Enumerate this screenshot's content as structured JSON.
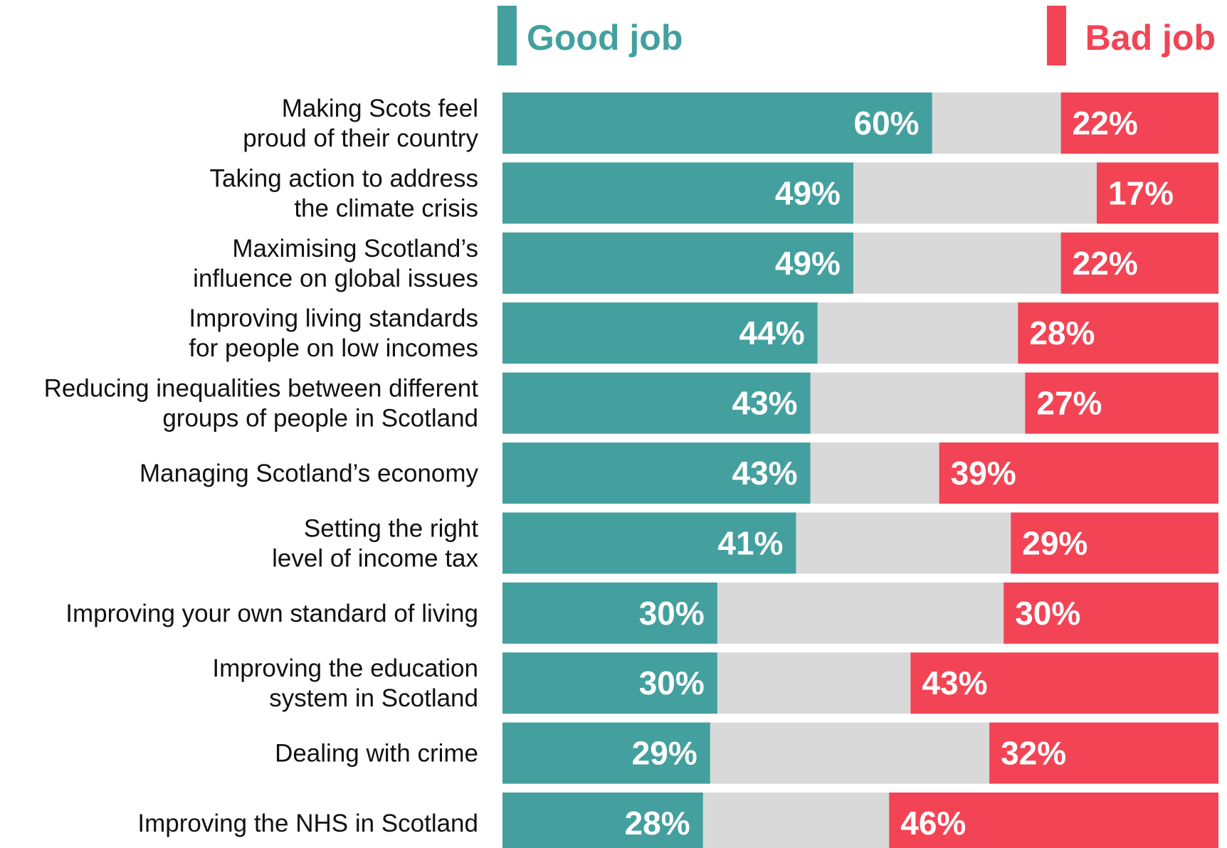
{
  "chart_data": {
    "type": "bar",
    "orientation": "horizontal",
    "stacked": true,
    "xlim": [
      0,
      100
    ],
    "grid": false,
    "legend_placement": "top",
    "categories": [
      [
        "Making Scots feel",
        "proud of their country"
      ],
      [
        "Taking action to address",
        "the climate crisis"
      ],
      [
        "Maximising Scotland’s",
        "influence on global issues"
      ],
      [
        "Improving living standards",
        "for people on low incomes"
      ],
      [
        "Reducing inequalities between different",
        "groups of people in Scotland"
      ],
      [
        "Managing Scotland’s economy"
      ],
      [
        "Setting the right",
        "level of income tax"
      ],
      [
        "Improving your own standard of living"
      ],
      [
        "Improving the education",
        "system in Scotland"
      ],
      [
        "Dealing with crime"
      ],
      [
        "Improving the NHS in Scotland"
      ]
    ],
    "series": [
      {
        "name": "Good job",
        "color": "#43A09F",
        "values": [
          60,
          49,
          49,
          44,
          43,
          43,
          41,
          30,
          30,
          29,
          28
        ],
        "labels": [
          "60%",
          "49%",
          "49%",
          "44%",
          "43%",
          "43%",
          "41%",
          "30%",
          "30%",
          "29%",
          "28%"
        ]
      },
      {
        "name": "Bad job",
        "color": "#F24455",
        "values": [
          22,
          17,
          22,
          28,
          27,
          39,
          29,
          30,
          43,
          32,
          46
        ],
        "labels": [
          "22%",
          "17%",
          "22%",
          "28%",
          "27%",
          "39%",
          "29%",
          "30%",
          "43%",
          "32%",
          "46%"
        ]
      }
    ],
    "remainder_color": "#D9D9D9"
  }
}
